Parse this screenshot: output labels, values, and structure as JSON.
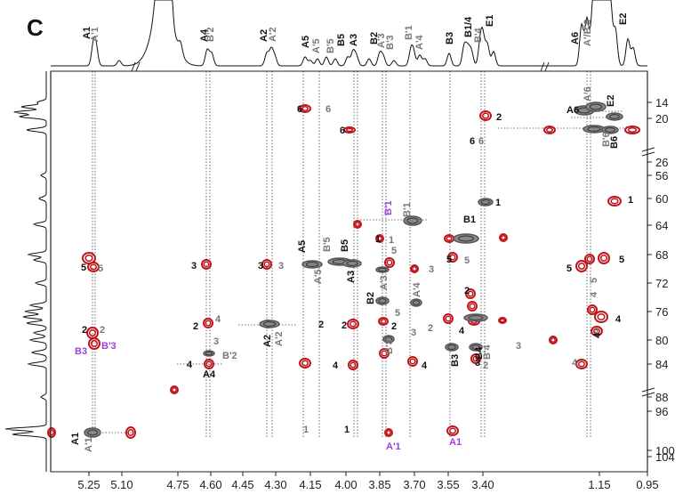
{
  "chart_data": {
    "type": "scatter",
    "panel_label": "C",
    "x_ticks": [
      "5.25",
      "5.10",
      "4.75",
      "4.60",
      "4.45",
      "4.30",
      "4.15",
      "4.00",
      "3.85",
      "3.70",
      "3.55",
      "3.40",
      "1.15",
      "0.95"
    ],
    "y_ticks": [
      "14",
      "20",
      "26",
      "56",
      "60",
      "64",
      "68",
      "72",
      "76",
      "80",
      "84",
      "88",
      "96",
      "100",
      "104"
    ],
    "colors": {
      "cross_peak_red": "#c0141c",
      "cross_peak_gray": "#555555",
      "label_primary": "#111111",
      "label_prime": "#777777",
      "label_highlight": "#9b3fe0"
    },
    "top_spectrum_labels": [
      {
        "text": "A1",
        "style": "primary"
      },
      {
        "text": "A'1",
        "style": "prime"
      },
      {
        "text": "A4",
        "style": "primary"
      },
      {
        "text": "B'2",
        "style": "prime"
      },
      {
        "text": "A2",
        "style": "primary"
      },
      {
        "text": "A'2",
        "style": "prime"
      },
      {
        "text": "A5",
        "style": "primary"
      },
      {
        "text": "A'5",
        "style": "prime"
      },
      {
        "text": "B'5",
        "style": "prime"
      },
      {
        "text": "B5",
        "style": "primary"
      },
      {
        "text": "A3",
        "style": "primary"
      },
      {
        "text": "B2",
        "style": "primary"
      },
      {
        "text": "A'3",
        "style": "prime"
      },
      {
        "text": "B'3",
        "style": "prime"
      },
      {
        "text": "B'1",
        "style": "prime"
      },
      {
        "text": "A'4",
        "style": "prime"
      },
      {
        "text": "B3",
        "style": "primary"
      },
      {
        "text": "B1/4",
        "style": "primary"
      },
      {
        "text": "B'4",
        "style": "prime"
      },
      {
        "text": "E1",
        "style": "primary"
      },
      {
        "text": "A6",
        "style": "primary"
      },
      {
        "text": "A'/B'6",
        "style": "prime"
      },
      {
        "text": "E2",
        "style": "primary"
      }
    ],
    "annotations": [
      {
        "text": "6",
        "style": "primary"
      },
      {
        "text": "6",
        "style": "prime"
      },
      {
        "text": "6",
        "style": "primary"
      },
      {
        "text": "2",
        "style": "primary"
      },
      {
        "text": "6",
        "style": "primary"
      },
      {
        "text": "6",
        "style": "prime"
      },
      {
        "text": "A6",
        "style": "primary"
      },
      {
        "text": "A'6",
        "style": "prime"
      },
      {
        "text": "E2",
        "style": "primary"
      },
      {
        "text": "B'6",
        "style": "prime"
      },
      {
        "text": "B6",
        "style": "primary"
      },
      {
        "text": "1",
        "style": "primary"
      },
      {
        "text": "1",
        "style": "primary"
      },
      {
        "text": "B'1",
        "style": "highlight"
      },
      {
        "text": "B'1",
        "style": "prime"
      },
      {
        "text": "1",
        "style": "primary"
      },
      {
        "text": "1",
        "style": "prime"
      },
      {
        "text": "B1",
        "style": "primary"
      },
      {
        "text": "5",
        "style": "primary"
      },
      {
        "text": "5",
        "style": "prime"
      },
      {
        "text": "3",
        "style": "primary"
      },
      {
        "text": "3",
        "style": "primary"
      },
      {
        "text": "3",
        "style": "prime"
      },
      {
        "text": "A5",
        "style": "primary"
      },
      {
        "text": "B'5",
        "style": "prime"
      },
      {
        "text": "B5",
        "style": "primary"
      },
      {
        "text": "A'5",
        "style": "prime"
      },
      {
        "text": "A3",
        "style": "primary"
      },
      {
        "text": "5",
        "style": "prime"
      },
      {
        "text": "A'3",
        "style": "prime"
      },
      {
        "text": "3",
        "style": "prime"
      },
      {
        "text": "A'4",
        "style": "prime"
      },
      {
        "text": "5",
        "style": "primary"
      },
      {
        "text": "5",
        "style": "primary"
      },
      {
        "text": "5",
        "style": "prime"
      },
      {
        "text": "5",
        "style": "primary"
      },
      {
        "text": "5",
        "style": "prime"
      },
      {
        "text": "4",
        "style": "prime"
      },
      {
        "text": "4",
        "style": "prime"
      },
      {
        "text": "2",
        "style": "primary"
      },
      {
        "text": "2",
        "style": "primary"
      },
      {
        "text": "2",
        "style": "prime"
      },
      {
        "text": "2",
        "style": "primary"
      },
      {
        "text": "4",
        "style": "prime"
      },
      {
        "text": "B3",
        "style": "highlight"
      },
      {
        "text": "B'3",
        "style": "highlight"
      },
      {
        "text": "3",
        "style": "prime"
      },
      {
        "text": "B'2",
        "style": "prime"
      },
      {
        "text": "A4",
        "style": "primary"
      },
      {
        "text": "4",
        "style": "primary"
      },
      {
        "text": "A2",
        "style": "primary"
      },
      {
        "text": "A'2",
        "style": "prime"
      },
      {
        "text": "2",
        "style": "primary"
      },
      {
        "text": "2",
        "style": "primary"
      },
      {
        "text": "5",
        "style": "prime"
      },
      {
        "text": "B2",
        "style": "primary"
      },
      {
        "text": "B'3",
        "style": "prime"
      },
      {
        "text": "3",
        "style": "prime"
      },
      {
        "text": "2",
        "style": "prime"
      },
      {
        "text": "2",
        "style": "primary"
      },
      {
        "text": "4",
        "style": "primary"
      },
      {
        "text": "B4",
        "style": "primary"
      },
      {
        "text": "B'4",
        "style": "prime"
      },
      {
        "text": "3",
        "style": "prime"
      },
      {
        "text": "3",
        "style": "primary"
      },
      {
        "text": "2",
        "style": "prime"
      },
      {
        "text": "4",
        "style": "primary"
      },
      {
        "text": "4",
        "style": "primary"
      },
      {
        "text": "4",
        "style": "primary"
      },
      {
        "text": "4",
        "style": "prime"
      },
      {
        "text": "4",
        "style": "primary"
      },
      {
        "text": "B3",
        "style": "primary"
      },
      {
        "text": "1",
        "style": "prime"
      },
      {
        "text": "1",
        "style": "primary"
      },
      {
        "text": "A'1",
        "style": "highlight"
      },
      {
        "text": "A1",
        "style": "highlight"
      },
      {
        "text": "A1",
        "style": "primary"
      },
      {
        "text": "A'1",
        "style": "prime"
      }
    ]
  }
}
